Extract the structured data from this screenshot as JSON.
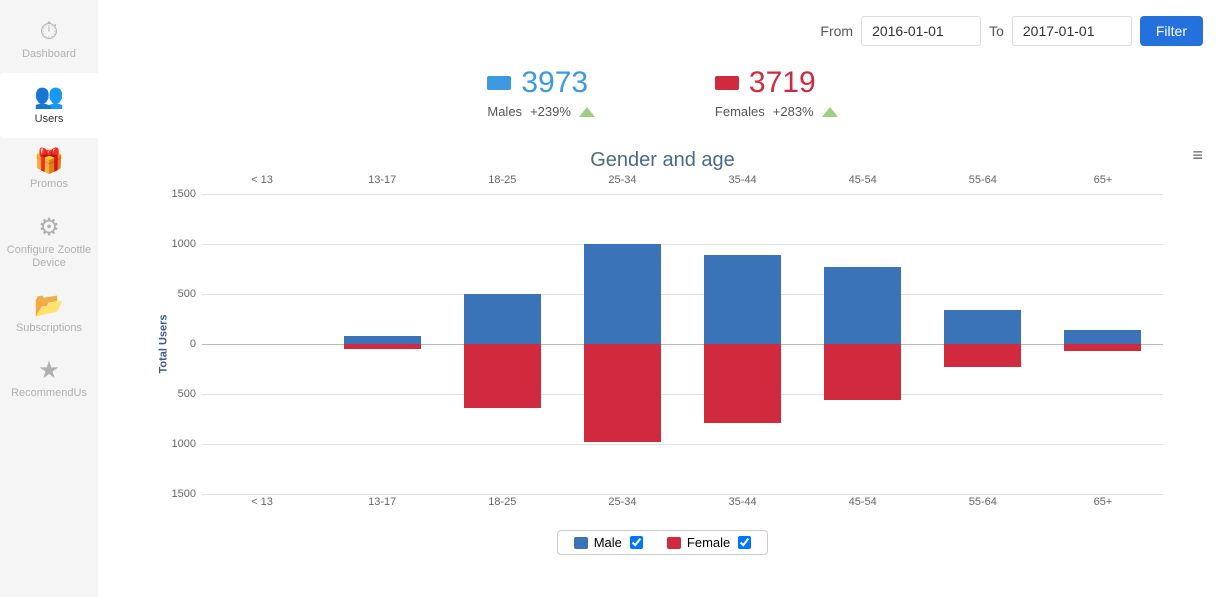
{
  "sidebar": {
    "items": [
      {
        "label": "Dashboard",
        "icon": "⏱"
      },
      {
        "label": "Users",
        "icon": "👥"
      },
      {
        "label": "Promos",
        "icon": "🎁"
      },
      {
        "label": "Configure Zoottle Device",
        "icon": "⚙"
      },
      {
        "label": "Subscriptions",
        "icon": "📂"
      },
      {
        "label": "RecommendUs",
        "icon": "★"
      }
    ],
    "active_index": 1
  },
  "filter": {
    "from_label": "From",
    "to_label": "To",
    "from_value": "2016-01-01",
    "to_value": "2017-01-01",
    "button_label": "Filter"
  },
  "stats": {
    "males": {
      "value": "3973",
      "label": "Males",
      "delta": "+239%",
      "color": "#3b9ae1"
    },
    "females": {
      "value": "3719",
      "label": "Females",
      "delta": "+283%",
      "color": "#d1293d"
    }
  },
  "chart": {
    "title": "Gender and age",
    "y_axis_label": "Total Users",
    "type": "diverging-bar",
    "categories": [
      "< 13",
      "13-17",
      "18-25",
      "25-34",
      "35-44",
      "45-54",
      "55-64",
      "65+"
    ],
    "series": {
      "male": {
        "label": "Male",
        "color": "#3b73b9",
        "values": [
          0,
          80,
          500,
          1000,
          890,
          770,
          340,
          140
        ]
      },
      "female": {
        "label": "Female",
        "color": "#d1293d",
        "values": [
          0,
          -50,
          -640,
          -980,
          -790,
          -560,
          -230,
          -70
        ]
      }
    },
    "y_ticks": [
      1500,
      1000,
      500,
      0,
      500,
      1000,
      1500
    ],
    "y_tick_values": [
      1500,
      1000,
      500,
      0,
      -500,
      -1000,
      -1500
    ],
    "ylim": [
      -1500,
      1500
    ],
    "grid_color": "#e0e0e0",
    "background": "#ffffff",
    "bar_width_pct": 8,
    "legend": [
      "Male",
      "Female"
    ]
  }
}
